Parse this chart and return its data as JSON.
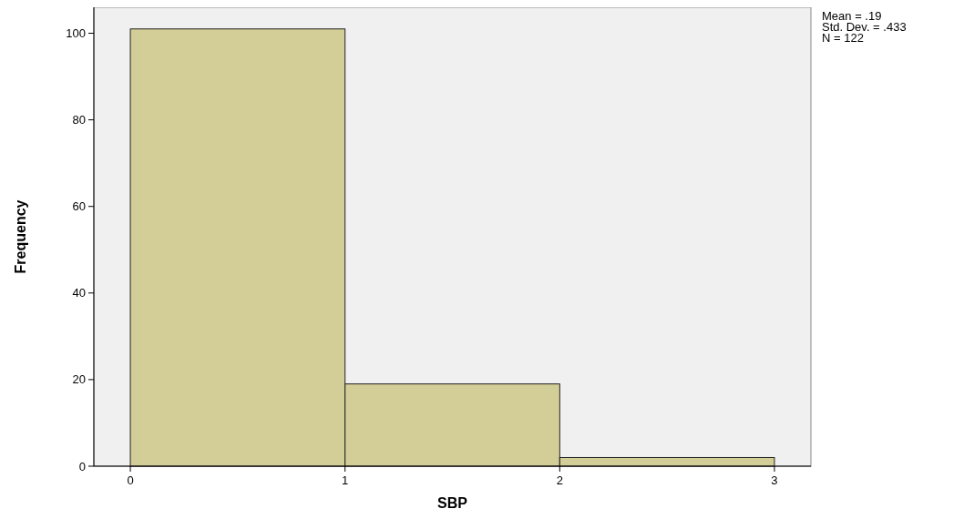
{
  "chart_data": {
    "type": "histogram",
    "xlabel": "SBP",
    "ylabel": "Frequency",
    "bins": [
      0,
      1,
      2,
      3
    ],
    "values": [
      101,
      19,
      2
    ],
    "color": "#d3ce97",
    "xlim": [
      -0.17,
      3.17
    ],
    "xticks": [
      0,
      1,
      2,
      3
    ],
    "ylim": [
      0,
      106
    ],
    "yticks": [
      0,
      20,
      40,
      60,
      80,
      100
    ],
    "annotations": [
      "Mean = .19",
      "Std. Dev. = .433",
      "N = 122"
    ]
  }
}
